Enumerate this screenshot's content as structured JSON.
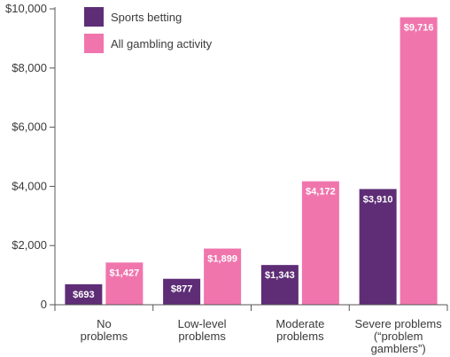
{
  "chart_data": {
    "type": "bar",
    "categories": [
      [
        "No",
        "problems"
      ],
      [
        "Low-level",
        "problems"
      ],
      [
        "Moderate",
        "problems"
      ],
      [
        "Severe problems",
        "(“problem",
        "gamblers”)"
      ]
    ],
    "series": [
      {
        "name": "Sports betting",
        "color": "#5e2d76",
        "values": [
          693,
          877,
          1343,
          3910
        ],
        "labels": [
          "$693",
          "$877",
          "$1,343",
          "$3,910"
        ]
      },
      {
        "name": "All gambling activity",
        "color": "#f075ad",
        "values": [
          1427,
          1899,
          4172,
          9716
        ],
        "labels": [
          "$1,427",
          "$1,899",
          "$4,172",
          "$9,716"
        ]
      }
    ],
    "ylim": [
      0,
      10000
    ],
    "yticks": [
      0,
      2000,
      4000,
      6000,
      8000,
      10000
    ],
    "ytick_labels": [
      "0",
      "$2,000",
      "$4,000",
      "$6,000",
      "$8,000",
      "$10,000"
    ],
    "legend_position": "top-left",
    "grid": false
  }
}
